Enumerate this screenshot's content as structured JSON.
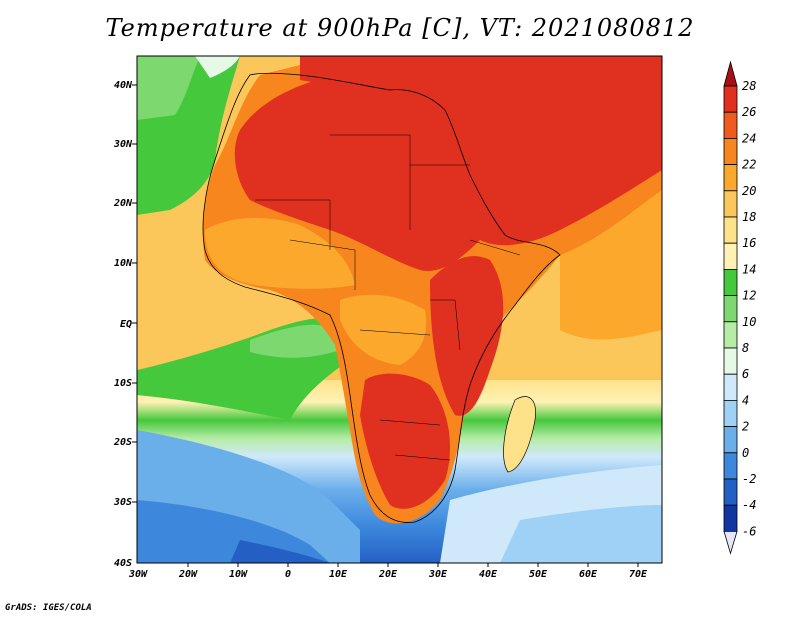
{
  "title": "Temperature at 900hPa [C], VT: 2021080812",
  "credit": "GrADS: IGES/COLA",
  "map": {
    "lat_labels": [
      "40N",
      "30N",
      "20N",
      "10N",
      "EQ",
      "10S",
      "20S",
      "30S",
      "40S"
    ],
    "lon_labels": [
      "30W",
      "20W",
      "10W",
      "0",
      "10E",
      "20E",
      "30E",
      "40E",
      "50E",
      "60E",
      "70E"
    ],
    "lat_range": [
      -40,
      45
    ],
    "lon_range": [
      -30,
      75
    ]
  },
  "colorbar": {
    "levels": [
      "28",
      "26",
      "24",
      "22",
      "20",
      "18",
      "16",
      "14",
      "12",
      "10",
      "8",
      "6",
      "4",
      "2",
      "0",
      "-2",
      "-4",
      "-6"
    ],
    "colors": [
      "#a50f15",
      "#e03020",
      "#f05a1e",
      "#f7861e",
      "#fba82c",
      "#fcc75a",
      "#fde28a",
      "#fff2b4",
      "#46c83c",
      "#7ed870",
      "#b6eca6",
      "#e6f8e6",
      "#cfe9fb",
      "#9fd0f6",
      "#6aaeea",
      "#3d88dd",
      "#2460c4",
      "#1236a0",
      "#0b2070"
    ]
  }
}
